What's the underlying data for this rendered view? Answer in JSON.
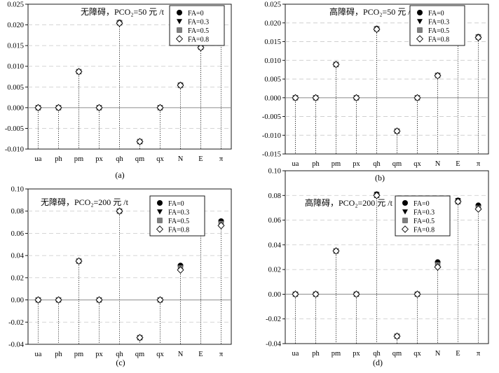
{
  "figure": {
    "series_names": [
      "FA=0",
      "FA=0.3",
      "FA=0.5",
      "FA=0.8"
    ],
    "series_markers": [
      "filled-circle",
      "filled-triangle-down",
      "gray-square",
      "open-diamond"
    ],
    "colors": {
      "filled": "#000000",
      "gray": "#7f7f7f",
      "open_fill": "#ffffff",
      "grid": "#bdbdbd",
      "dashed": "#cfcfcf"
    }
  },
  "chart_data": [
    {
      "type": "scatter",
      "panel": "(a)",
      "title": "无障碍，PCO₂=50 元 /t",
      "categories": [
        "ua",
        "ph",
        "pm",
        "px",
        "qh",
        "qm",
        "qx",
        "N",
        "E",
        "π"
      ],
      "ylim": [
        -0.01,
        0.025
      ],
      "yticks": [
        "0.025",
        "0.020",
        "0.015",
        "0.010",
        "0.005",
        "0.000",
        "-0.005",
        "-0.010"
      ],
      "legend_position": "top-right",
      "series": [
        {
          "name": "FA=0",
          "values": [
            0,
            0,
            0.0087,
            0,
            0.0206,
            -0.0082,
            0,
            0.0055,
            0.0147,
            0.0182
          ]
        },
        {
          "name": "FA=0.3",
          "values": [
            0,
            0,
            0.0087,
            0,
            0.0206,
            -0.0082,
            0,
            0.0055,
            0.0147,
            0.0182
          ]
        },
        {
          "name": "FA=0.5",
          "values": [
            0,
            0,
            0.0087,
            0,
            0.0205,
            -0.0082,
            0,
            0.0054,
            0.0146,
            0.0181
          ]
        },
        {
          "name": "FA=0.8",
          "values": [
            0,
            0,
            0.0087,
            0,
            0.0204,
            -0.0082,
            0,
            0.0054,
            0.0145,
            0.018
          ]
        }
      ]
    },
    {
      "type": "scatter",
      "panel": "(b)",
      "title": "高障碍，PCO₂=50 元 /t",
      "categories": [
        "ua",
        "ph",
        "pm",
        "px",
        "qh",
        "qm",
        "qx",
        "N",
        "E",
        "π"
      ],
      "ylim": [
        -0.015,
        0.025
      ],
      "yticks": [
        "0.025",
        "0.020",
        "0.015",
        "0.010",
        "0.005",
        "0.000",
        "-0.005",
        "-0.010",
        "-0.015"
      ],
      "legend_position": "top-right",
      "series": [
        {
          "name": "FA=0",
          "values": [
            0,
            0,
            0.0089,
            0,
            0.0185,
            -0.0089,
            0,
            0.006,
            0.0172,
            0.0163
          ]
        },
        {
          "name": "FA=0.3",
          "values": [
            0,
            0,
            0.0089,
            0,
            0.0185,
            -0.0089,
            0,
            0.006,
            0.0172,
            0.0163
          ]
        },
        {
          "name": "FA=0.5",
          "values": [
            0,
            0,
            0.0089,
            0,
            0.0184,
            -0.0089,
            0,
            0.006,
            0.0171,
            0.0162
          ]
        },
        {
          "name": "FA=0.8",
          "values": [
            0,
            0,
            0.0089,
            0,
            0.0183,
            -0.0089,
            0,
            0.0059,
            0.0169,
            0.0161
          ]
        }
      ]
    },
    {
      "type": "scatter",
      "panel": "(c)",
      "title": "无障碍，PCO₂=200 元 /t",
      "categories": [
        "ua",
        "ph",
        "pm",
        "px",
        "qh",
        "qm",
        "qx",
        "N",
        "E",
        "π"
      ],
      "ylim": [
        -0.04,
        0.1
      ],
      "yticks": [
        "0.10",
        "0.08",
        "0.06",
        "0.04",
        "0.02",
        "0.00",
        "-0.02",
        "-0.04"
      ],
      "legend_position": "top-right",
      "series": [
        {
          "name": "FA=0",
          "values": [
            0,
            0,
            0.035,
            0,
            0.08,
            -0.034,
            0,
            0.031,
            0.075,
            0.071
          ]
        },
        {
          "name": "FA=0.3",
          "values": [
            0,
            0,
            0.035,
            0,
            0.08,
            -0.034,
            0,
            0.03,
            0.075,
            0.07
          ]
        },
        {
          "name": "FA=0.5",
          "values": [
            0,
            0,
            0.035,
            0,
            0.08,
            -0.034,
            0,
            0.029,
            0.074,
            0.069
          ]
        },
        {
          "name": "FA=0.8",
          "values": [
            0,
            0,
            0.035,
            0,
            0.08,
            -0.034,
            0,
            0.027,
            0.074,
            0.067
          ]
        }
      ]
    },
    {
      "type": "scatter",
      "panel": "(d)",
      "title": "高障碍，PCO₂=200 元 /t",
      "categories": [
        "ua",
        "ph",
        "pm",
        "px",
        "qh",
        "qm",
        "qx",
        "N",
        "E",
        "π"
      ],
      "ylim": [
        -0.04,
        0.1
      ],
      "yticks": [
        "0.10",
        "0.08",
        "0.06",
        "0.04",
        "0.02",
        "0.00",
        "-0.02",
        "-0.04"
      ],
      "legend_position": "top-right",
      "series": [
        {
          "name": "FA=0",
          "values": [
            0,
            0,
            0.035,
            0,
            0.081,
            -0.034,
            0,
            0.026,
            0.076,
            0.072
          ]
        },
        {
          "name": "FA=0.3",
          "values": [
            0,
            0,
            0.035,
            0,
            0.081,
            -0.034,
            0,
            0.025,
            0.076,
            0.071
          ]
        },
        {
          "name": "FA=0.5",
          "values": [
            0,
            0,
            0.035,
            0,
            0.08,
            -0.034,
            0,
            0.024,
            0.075,
            0.07
          ]
        },
        {
          "name": "FA=0.8",
          "values": [
            0,
            0,
            0.035,
            0,
            0.08,
            -0.034,
            0,
            0.022,
            0.075,
            0.069
          ]
        }
      ]
    }
  ]
}
